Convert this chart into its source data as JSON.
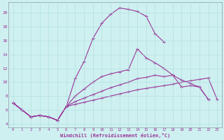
{
  "xlabel": "Windchill (Refroidissement éolien,°C)",
  "bg_color": "#cff0f0",
  "line_color": "#993399",
  "xlim": [
    -0.5,
    23.5
  ],
  "ylim": [
    3.5,
    21.5
  ],
  "xticks": [
    0,
    1,
    2,
    3,
    4,
    5,
    6,
    7,
    8,
    9,
    10,
    11,
    12,
    13,
    14,
    15,
    16,
    17,
    18,
    19,
    20,
    21,
    22,
    23
  ],
  "yticks": [
    4,
    6,
    8,
    10,
    12,
    14,
    16,
    18,
    20
  ],
  "line1_x": [
    0,
    1,
    2,
    3,
    4,
    5,
    6,
    7,
    8,
    9,
    10,
    11,
    12,
    13,
    14,
    15,
    16,
    17
  ],
  "line1_y": [
    7.0,
    6.0,
    5.0,
    5.2,
    5.0,
    4.5,
    6.5,
    10.5,
    13.0,
    16.3,
    18.5,
    19.8,
    20.7,
    20.5,
    20.2,
    19.5,
    17.0,
    15.8
  ],
  "line2_x": [
    0,
    1,
    2,
    3,
    4,
    5,
    6,
    7,
    8,
    9,
    10,
    11,
    12,
    13,
    14,
    15,
    16,
    17,
    18,
    19,
    20,
    21,
    22
  ],
  "line2_y": [
    7.0,
    6.0,
    5.0,
    5.2,
    5.0,
    4.5,
    6.5,
    8.0,
    9.0,
    10.0,
    10.8,
    11.2,
    11.5,
    11.8,
    14.8,
    13.5,
    12.8,
    12.0,
    11.0,
    10.3,
    9.8,
    9.3,
    7.5
  ],
  "line3_x": [
    0,
    1,
    2,
    3,
    4,
    5,
    6,
    7,
    8,
    9,
    10,
    11,
    12,
    13,
    14,
    15,
    16,
    17,
    18,
    19,
    20,
    21,
    22
  ],
  "line3_y": [
    7.0,
    6.0,
    5.0,
    5.2,
    5.0,
    4.5,
    6.5,
    7.2,
    7.7,
    8.2,
    8.7,
    9.2,
    9.6,
    10.0,
    10.5,
    10.7,
    11.0,
    10.8,
    11.0,
    9.3,
    9.5,
    9.3,
    7.5
  ],
  "line4_x": [
    0,
    1,
    2,
    3,
    4,
    5,
    6,
    7,
    8,
    9,
    10,
    11,
    12,
    13,
    14,
    15,
    16,
    17,
    18,
    19,
    20,
    21,
    22,
    23
  ],
  "line4_y": [
    7.0,
    6.0,
    5.0,
    5.2,
    5.0,
    4.5,
    6.5,
    6.8,
    7.1,
    7.4,
    7.7,
    8.0,
    8.3,
    8.6,
    8.9,
    9.1,
    9.3,
    9.5,
    9.7,
    10.0,
    10.2,
    10.4,
    10.6,
    7.5
  ]
}
